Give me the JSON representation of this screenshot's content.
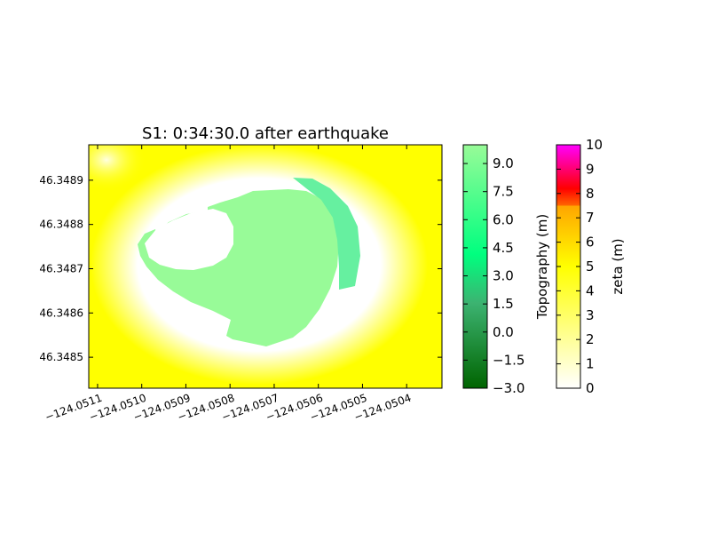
{
  "chart_data": {
    "type": "heatmap",
    "title": "S1: 0:34:30.0 after earthquake",
    "xlabel": "",
    "ylabel": "",
    "xlim": [
      -124.05112,
      -124.05032
    ],
    "ylim": [
      46.34843,
      46.34898
    ],
    "x_ticks": [
      {
        "value": -124.0511,
        "label": "−124.0511"
      },
      {
        "value": -124.051,
        "label": "−124.0510"
      },
      {
        "value": -124.0509,
        "label": "−124.0509"
      },
      {
        "value": -124.0508,
        "label": "−124.0508"
      },
      {
        "value": -124.0507,
        "label": "−124.0507"
      },
      {
        "value": -124.0506,
        "label": "−124.0506"
      },
      {
        "value": -124.0505,
        "label": "−124.0505"
      },
      {
        "value": -124.0504,
        "label": "−124.0504"
      }
    ],
    "y_ticks": [
      {
        "value": 46.3485,
        "label": "46.3485"
      },
      {
        "value": 46.3486,
        "label": "46.3486"
      },
      {
        "value": 46.3487,
        "label": "46.3487"
      },
      {
        "value": 46.3488,
        "label": "46.3488"
      },
      {
        "value": 46.3489,
        "label": "46.3489"
      }
    ],
    "layers": [
      {
        "name": "water-surface-zeta",
        "dominant_value_m": 4.6,
        "low_ring_value_m": 0.2
      },
      {
        "name": "dry-land-topography",
        "shape": "crescent island",
        "value_m": 10.0
      }
    ],
    "colorbars": [
      {
        "label": "Topography (m)",
        "range": [
          -3.0,
          10.0
        ],
        "ticks": [
          "9.0",
          "7.5",
          "6.0",
          "4.5",
          "3.0",
          "1.5",
          "0.0",
          "−1.5",
          "−3.0"
        ],
        "tick_values": [
          9.0,
          7.5,
          6.0,
          4.5,
          3.0,
          1.5,
          0.0,
          -1.5,
          -3.0
        ],
        "colors": [
          "#006400",
          "#3cb371",
          "#00ff7f",
          "#98fb98"
        ]
      },
      {
        "label": "zeta (m)",
        "range": [
          0,
          10
        ],
        "ticks": [
          "10",
          "9",
          "8",
          "7",
          "6",
          "5",
          "4",
          "3",
          "2",
          "1",
          "0"
        ],
        "tick_values": [
          10,
          9,
          8,
          7,
          6,
          5,
          4,
          3,
          2,
          1,
          0
        ],
        "colors": [
          "#ffffff",
          "#ffff00",
          "#ff4500",
          "#ff0000",
          "#ff00ff"
        ]
      }
    ],
    "grid": false,
    "legend": "right"
  }
}
